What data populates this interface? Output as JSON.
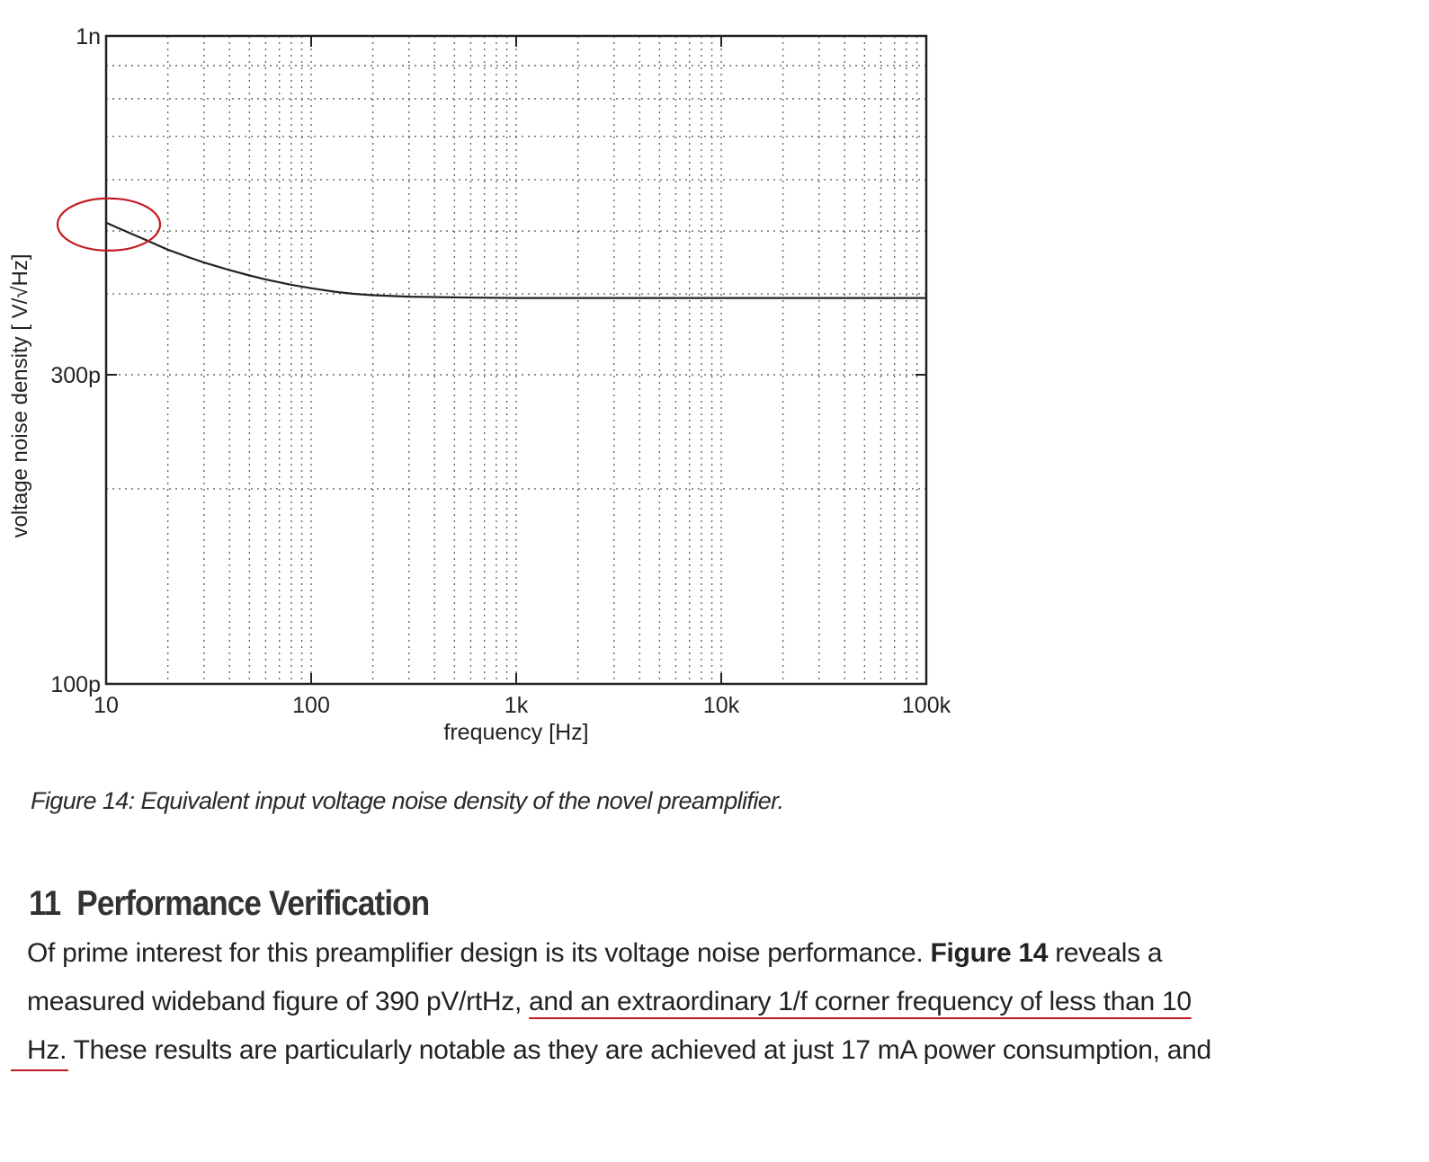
{
  "figure": {
    "chart_data": {
      "type": "line",
      "xscale": "log",
      "yscale": "log",
      "xlim": [
        10,
        100000
      ],
      "ylim": [
        1e-10,
        1e-09
      ],
      "xlabel": "frequency [Hz]",
      "ylabel": "voltage noise density [ V/√Hz]",
      "x_ticks": [
        {
          "value": 10,
          "label": "10"
        },
        {
          "value": 100,
          "label": "100"
        },
        {
          "value": 1000,
          "label": "1k"
        },
        {
          "value": 10000,
          "label": "10k"
        },
        {
          "value": 100000,
          "label": "100k"
        }
      ],
      "y_ticks": [
        {
          "value": 1e-10,
          "label": "100p"
        },
        {
          "value": 3e-10,
          "label": "300p"
        },
        {
          "value": 1e-09,
          "label": "1n"
        }
      ],
      "grid": true,
      "series": [
        {
          "x": [
            10,
            12,
            15,
            20,
            25,
            30,
            40,
            50,
            60,
            80,
            100,
            130,
            160,
            200,
            300,
            500,
            1000,
            2000,
            5000,
            10000,
            20000,
            50000,
            100000
          ],
          "y": [
            5.15e-10,
            5.02e-10,
            4.87e-10,
            4.68e-10,
            4.56e-10,
            4.47e-10,
            4.35e-10,
            4.27e-10,
            4.21e-10,
            4.13e-10,
            4.08e-10,
            4.03e-10,
            4e-10,
            3.98e-10,
            3.96e-10,
            3.95e-10,
            3.94e-10,
            3.94e-10,
            3.94e-10,
            3.94e-10,
            3.94e-10,
            3.94e-10,
            3.94e-10
          ]
        }
      ],
      "annotations": [
        {
          "type": "ellipse",
          "x": 10,
          "y": 5.15e-10,
          "color": "#c41a24"
        }
      ]
    },
    "caption": "Figure 14: Equivalent input voltage noise density of the novel preamplifier."
  },
  "section": {
    "number": "11",
    "title": "Performance Verification"
  },
  "paragraph": {
    "line1_a": "Of prime interest for this preamplifier design is its voltage noise performance.",
    "line1_b": "Figure 14",
    "line1_c": "reveals a",
    "line2_a": "measured wideband figure of 390 pV/rtHz,",
    "line2_b": "and an extraordinary 1/f corner frequency of less than 10",
    "line3_a": "Hz.",
    "line3_b": "These results are particularly notable as they are achieved at just 17 mA power consumption, and"
  },
  "colors": {
    "highlight_red": "#c41a24",
    "curve": "#222222",
    "grid": "#666666"
  }
}
